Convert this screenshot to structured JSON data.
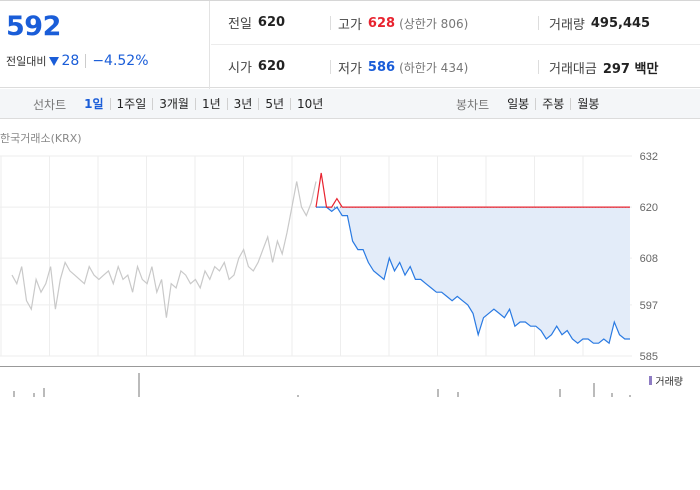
{
  "quote": {
    "price": "592",
    "change_label": "전일대비",
    "change_value": "28",
    "change_percent": "−4.52%",
    "direction": "down",
    "up_color": "#e8232f",
    "down_color": "#1a5dd8"
  },
  "stats": {
    "prev_close": {
      "label": "전일",
      "value": "620"
    },
    "high": {
      "label": "고가",
      "value": "628",
      "limit_label": "(상한가 806)"
    },
    "volume": {
      "label": "거래량",
      "value": "495,445"
    },
    "open": {
      "label": "시가",
      "value": "620"
    },
    "low": {
      "label": "저가",
      "value": "586",
      "limit_label": "(하한가 434)"
    },
    "trade_value": {
      "label": "거래대금",
      "value": "297 백만"
    }
  },
  "tabs": {
    "line_title": "선차트",
    "line_periods": [
      "1일",
      "1주일",
      "3개월",
      "1년",
      "3년",
      "5년",
      "10년"
    ],
    "active_period": "1일",
    "candle_title": "봉차트",
    "candle_periods": [
      "일봉",
      "주봉",
      "월봉"
    ]
  },
  "chart": {
    "source": "한국거래소(KRX)",
    "volume_legend": "거래량"
  },
  "chart_data": {
    "type": "line",
    "y_ticks": [
      "632",
      "620",
      "608",
      "597",
      "585"
    ],
    "ylim": [
      585,
      632
    ],
    "reference_line": 620,
    "series": [
      {
        "values_prev_day": [
          604,
          602,
          606,
          598,
          596,
          603,
          600,
          602,
          606,
          596,
          603,
          607,
          605,
          604,
          603,
          602,
          606,
          604,
          603,
          604,
          605,
          602,
          606,
          603,
          604,
          600,
          606,
          603,
          602,
          606,
          600,
          603,
          594,
          602,
          601,
          605,
          604,
          602,
          603,
          601,
          605,
          603,
          606,
          605,
          607,
          603,
          604,
          608,
          610,
          606,
          605,
          607,
          610,
          613,
          607,
          612,
          609,
          614,
          620,
          626,
          620,
          618,
          621,
          626
        ]
      },
      {
        "values_today": [
          620,
          628,
          620,
          619,
          622,
          618,
          618,
          612,
          610,
          610,
          607,
          605,
          604,
          603,
          608,
          605,
          607,
          604,
          606,
          603,
          603,
          602,
          601,
          600,
          600,
          599,
          598,
          599,
          598,
          597,
          595,
          590,
          594,
          595,
          596,
          595,
          594,
          596,
          592,
          593,
          593,
          592,
          592,
          591,
          589,
          590,
          592,
          590,
          591,
          589,
          588,
          589,
          589,
          588,
          588,
          589,
          588,
          593,
          590,
          589,
          589
        ]
      }
    ]
  }
}
